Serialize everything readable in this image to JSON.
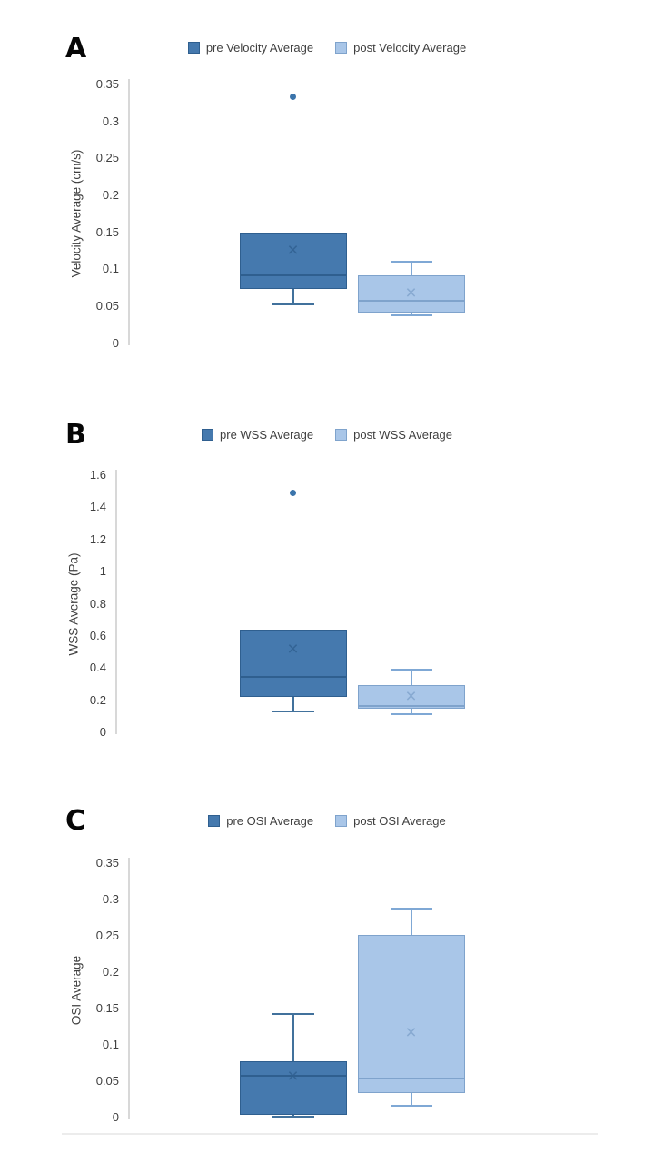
{
  "figure": {
    "description": "Three stacked box plots comparing pre vs post treatment hemodynamic averages"
  },
  "colors": {
    "pre_fill": "#4579AE",
    "pre_border": "#2F5F8F",
    "pre_stem": "#41719C",
    "pre_mean": "#2F5F8F",
    "post_fill": "#A9C6E8",
    "post_border": "#7FA3CC",
    "post_stem": "#7FA8D5",
    "post_mean": "#7FA3CC",
    "outlier": "#3B74AB",
    "axis_line": "#d8d8d8"
  },
  "chart_data": [
    {
      "type": "boxplot",
      "panel_label": "A",
      "ylabel": "Velocity Average (cm/s)",
      "ylim": [
        0,
        0.35
      ],
      "yticks": [
        0,
        0.05,
        0.1,
        0.15,
        0.2,
        0.25,
        0.3,
        0.35
      ],
      "ytick_labels": [
        "0",
        "0.05",
        "0.1",
        "0.15",
        "0.2",
        "0.25",
        "0.3",
        "0.35"
      ],
      "grid": false,
      "legend_position": "top-center",
      "legend": [
        {
          "label": "pre Velocity Average",
          "group": "pre"
        },
        {
          "label": "post Velocity Average",
          "group": "post"
        }
      ],
      "series": [
        {
          "name": "pre Velocity Average",
          "group": "pre",
          "whisker_low": 0.052,
          "q1": 0.073,
          "median": 0.092,
          "q3": 0.149,
          "whisker_high": 0.149,
          "mean": 0.125,
          "outliers": [
            0.333
          ]
        },
        {
          "name": "post Velocity Average",
          "group": "post",
          "whisker_low": 0.038,
          "q1": 0.041,
          "median": 0.057,
          "q3": 0.092,
          "whisker_high": 0.11,
          "mean": 0.067,
          "outliers": []
        }
      ]
    },
    {
      "type": "boxplot",
      "panel_label": "B",
      "ylabel": "WSS Average (Pa)",
      "ylim": [
        0,
        1.6
      ],
      "yticks": [
        0,
        0.2,
        0.4,
        0.6,
        0.8,
        1,
        1.2,
        1.4,
        1.6
      ],
      "ytick_labels": [
        "0",
        "0.2",
        "0.4",
        "0.6",
        "0.8",
        "1",
        "1.2",
        "1.4",
        "1.6"
      ],
      "grid": false,
      "legend_position": "top-center",
      "legend": [
        {
          "label": "pre WSS Average",
          "group": "pre"
        },
        {
          "label": "post WSS Average",
          "group": "post"
        }
      ],
      "series": [
        {
          "name": "pre WSS Average",
          "group": "pre",
          "whisker_low": 0.13,
          "q1": 0.22,
          "median": 0.345,
          "q3": 0.64,
          "whisker_high": 0.64,
          "mean": 0.515,
          "outliers": [
            1.49
          ]
        },
        {
          "name": "post WSS Average",
          "group": "post",
          "whisker_low": 0.113,
          "q1": 0.147,
          "median": 0.163,
          "q3": 0.295,
          "whisker_high": 0.39,
          "mean": 0.22,
          "outliers": []
        }
      ]
    },
    {
      "type": "boxplot",
      "panel_label": "C",
      "ylabel": "OSI Average",
      "ylim": [
        0,
        0.35
      ],
      "yticks": [
        0,
        0.05,
        0.1,
        0.15,
        0.2,
        0.25,
        0.3,
        0.35
      ],
      "ytick_labels": [
        "0",
        "0.05",
        "0.1",
        "0.15",
        "0.2",
        "0.25",
        "0.3",
        "0.35"
      ],
      "grid": false,
      "legend_position": "top-center",
      "legend": [
        {
          "label": "pre OSI Average",
          "group": "pre"
        },
        {
          "label": "post OSI Average",
          "group": "post"
        }
      ],
      "series": [
        {
          "name": "pre OSI Average",
          "group": "pre",
          "whisker_low": 0.001,
          "q1": 0.004,
          "median": 0.057,
          "q3": 0.0775,
          "whisker_high": 0.143,
          "mean": 0.056,
          "outliers": []
        },
        {
          "name": "post OSI Average",
          "group": "post",
          "whisker_low": 0.016,
          "q1": 0.034,
          "median": 0.054,
          "q3": 0.251,
          "whisker_high": 0.287,
          "mean": 0.116,
          "outliers": []
        }
      ]
    }
  ]
}
